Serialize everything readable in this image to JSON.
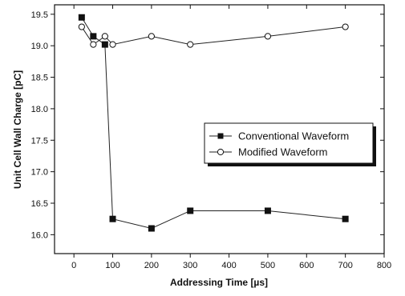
{
  "chart_data": {
    "type": "line",
    "xlabel": "Addressing Time [µs]",
    "ylabel": "Unit Cell Wall Charge [pC]",
    "xlim": [
      -50,
      800
    ],
    "ylim": [
      15.7,
      19.65
    ],
    "xticks": [
      0,
      100,
      200,
      300,
      400,
      500,
      600,
      700,
      800
    ],
    "yticks": [
      16.0,
      16.5,
      17.0,
      17.5,
      18.0,
      18.5,
      19.0,
      19.5
    ],
    "ytick_labels": [
      "16.0",
      "16.5",
      "17.0",
      "17.5",
      "18.0",
      "18.5",
      "19.0",
      "19.5"
    ],
    "grid": false,
    "legend_position": "right",
    "series": [
      {
        "name": "Conventional Waveform",
        "marker": "filled-square",
        "x": [
          20,
          50,
          80,
          100,
          200,
          300,
          500,
          700
        ],
        "y": [
          19.45,
          19.15,
          19.02,
          16.25,
          16.1,
          16.38,
          16.38,
          16.25
        ]
      },
      {
        "name": "Modified Waveform",
        "marker": "open-circle",
        "x": [
          20,
          50,
          80,
          100,
          200,
          300,
          500,
          700
        ],
        "y": [
          19.3,
          19.02,
          19.15,
          19.02,
          19.15,
          19.02,
          19.15,
          19.3
        ]
      }
    ]
  }
}
